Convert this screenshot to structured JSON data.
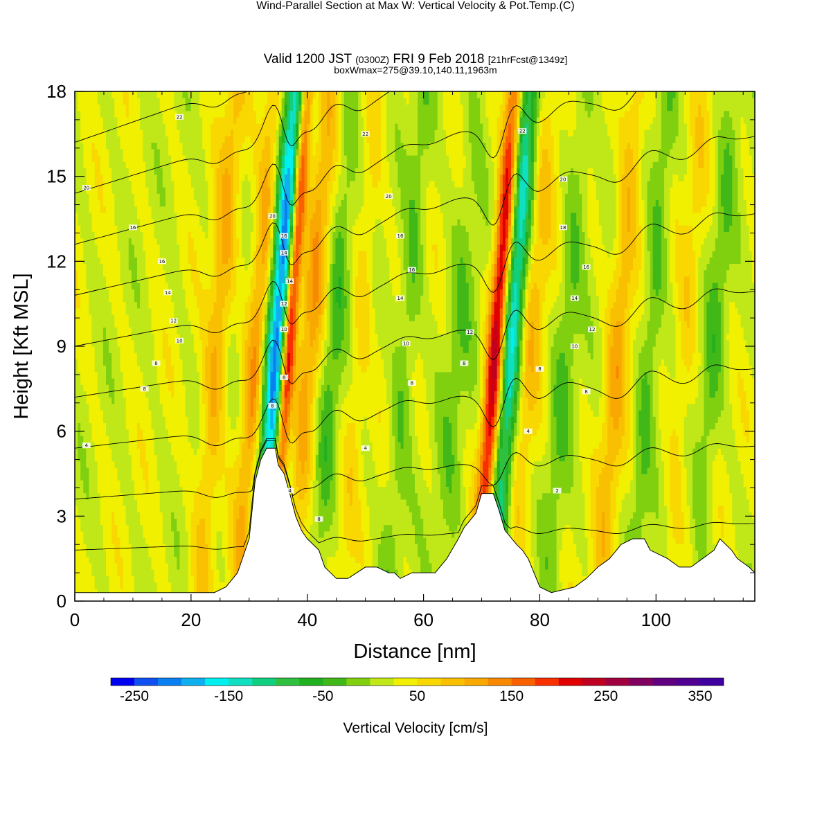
{
  "title": {
    "main": "Wind-Parallel Section at Max W: Vertical Velocity & Pot.Temp.",
    "copyright": "(C)",
    "valid_prefix": "Valid 1200 JST",
    "valid_zulu": "(0300Z)",
    "valid_date": "FRI 9 Feb 2018",
    "forecast": "[21hrFcst@1349z]",
    "box": "boxWmax=275@39.10,140.11,1963m"
  },
  "chart_data": {
    "type": "heatmap",
    "xlabel": "Distance [nm]",
    "ylabel": "Height [Kft MSL]",
    "xlim": [
      0,
      117
    ],
    "ylim": [
      0,
      18
    ],
    "xticks": [
      0,
      20,
      40,
      60,
      80,
      100
    ],
    "yticks": [
      0,
      3,
      6,
      9,
      12,
      15,
      18
    ],
    "colorbar": {
      "title": "Vertical Velocity [cm/s]",
      "min": -275,
      "max": 375,
      "step": 25,
      "tick_values": [
        -250,
        -150,
        -50,
        50,
        150,
        250,
        350
      ],
      "tick_labels": [
        "-250",
        "-150",
        "-50",
        "50",
        "150",
        "250",
        "350"
      ],
      "colors": [
        "#0000f0",
        "#1050f0",
        "#0a80f0",
        "#10b0f0",
        "#00f0f0",
        "#10e0c0",
        "#10d080",
        "#30c040",
        "#20b020",
        "#40b818",
        "#80d010",
        "#c0e818",
        "#f0f000",
        "#f8d800",
        "#f8c000",
        "#f8a800",
        "#f88800",
        "#f86000",
        "#f83000",
        "#e00000",
        "#c00020",
        "#a00040",
        "#800060",
        "#600080",
        "#500090",
        "#4000a0"
      ]
    },
    "velocity_bands": [
      {
        "x": 34.8,
        "w": 2.3,
        "v": -260
      },
      {
        "x": 36.8,
        "w": 1.2,
        "v": 260
      },
      {
        "x": 40.5,
        "w": 2.0,
        "v": 90
      },
      {
        "x": 44.5,
        "w": 1.8,
        "v": -60
      },
      {
        "x": 49.0,
        "w": 1.6,
        "v": 40
      },
      {
        "x": 57.0,
        "w": 2.0,
        "v": -50
      },
      {
        "x": 66.0,
        "w": 2.5,
        "v": -40
      },
      {
        "x": 72.5,
        "w": 1.5,
        "v": 240
      },
      {
        "x": 75.2,
        "w": 2.0,
        "v": -200
      },
      {
        "x": 78.0,
        "w": 2.5,
        "v": 70
      },
      {
        "x": 84.5,
        "w": 2.0,
        "v": -50
      },
      {
        "x": 93.5,
        "w": 2.0,
        "v": 80
      },
      {
        "x": 99.0,
        "w": 1.8,
        "v": -60
      },
      {
        "x": 105.0,
        "w": 1.8,
        "v": 40
      },
      {
        "x": 110.0,
        "w": 1.8,
        "v": -50
      },
      {
        "x": 24.5,
        "w": 2.0,
        "v": 80
      },
      {
        "x": 31.5,
        "w": 2.0,
        "v": 120
      }
    ],
    "terrain": [
      [
        0,
        0.3
      ],
      [
        10,
        0.3
      ],
      [
        24,
        0.3
      ],
      [
        26,
        0.5
      ],
      [
        28,
        1.0
      ],
      [
        30,
        2.2
      ],
      [
        31,
        4.2
      ],
      [
        32,
        5.0
      ],
      [
        33,
        5.4
      ],
      [
        34.5,
        5.4
      ],
      [
        35,
        4.8
      ],
      [
        36,
        4.5
      ],
      [
        37,
        3.8
      ],
      [
        38,
        3.0
      ],
      [
        39,
        2.5
      ],
      [
        40,
        2.2
      ],
      [
        42,
        1.8
      ],
      [
        43,
        1.2
      ],
      [
        45,
        0.8
      ],
      [
        47,
        0.8
      ],
      [
        50,
        1.2
      ],
      [
        52,
        1.2
      ],
      [
        54,
        1.0
      ],
      [
        55,
        1.0
      ],
      [
        56,
        0.8
      ],
      [
        58,
        1.0
      ],
      [
        62,
        1.0
      ],
      [
        64,
        1.5
      ],
      [
        66,
        2.2
      ],
      [
        67,
        2.6
      ],
      [
        69,
        3.1
      ],
      [
        70,
        3.8
      ],
      [
        72,
        3.8
      ],
      [
        73,
        3.2
      ],
      [
        74,
        2.5
      ],
      [
        76,
        2.0
      ],
      [
        77,
        1.8
      ],
      [
        78,
        1.5
      ],
      [
        79,
        1.0
      ],
      [
        80,
        0.5
      ],
      [
        82,
        0.3
      ],
      [
        86,
        0.5
      ],
      [
        88,
        0.8
      ],
      [
        90,
        1.2
      ],
      [
        92,
        1.5
      ],
      [
        94,
        2.0
      ],
      [
        96,
        2.2
      ],
      [
        98,
        2.2
      ],
      [
        99,
        1.8
      ],
      [
        102,
        1.5
      ],
      [
        104,
        1.2
      ],
      [
        106,
        1.2
      ],
      [
        108,
        1.5
      ],
      [
        110,
        1.8
      ],
      [
        111,
        2.2
      ],
      [
        113,
        1.8
      ],
      [
        114,
        1.5
      ],
      [
        116,
        1.2
      ],
      [
        117,
        1.0
      ]
    ],
    "theta_levels": [
      2,
      4,
      6,
      8,
      10,
      12,
      14,
      16,
      18,
      20,
      22
    ],
    "contour_labels": [
      {
        "x": 2,
        "y": 5.5,
        "text": "4"
      },
      {
        "x": 12,
        "y": 7.5,
        "text": "8"
      },
      {
        "x": 14,
        "y": 8.4,
        "text": "8"
      },
      {
        "x": 18,
        "y": 9.2,
        "text": "10"
      },
      {
        "x": 17,
        "y": 9.9,
        "text": "12"
      },
      {
        "x": 16,
        "y": 10.9,
        "text": "14"
      },
      {
        "x": 15,
        "y": 12.0,
        "text": "16"
      },
      {
        "x": 10,
        "y": 13.2,
        "text": "16"
      },
      {
        "x": 2,
        "y": 14.6,
        "text": "20"
      },
      {
        "x": 18,
        "y": 17.1,
        "text": "22"
      },
      {
        "x": 34,
        "y": 6.9,
        "text": "8"
      },
      {
        "x": 36,
        "y": 7.9,
        "text": "8"
      },
      {
        "x": 36,
        "y": 9.6,
        "text": "10"
      },
      {
        "x": 36,
        "y": 10.5,
        "text": "12"
      },
      {
        "x": 37,
        "y": 11.3,
        "text": "14"
      },
      {
        "x": 36,
        "y": 12.3,
        "text": "14"
      },
      {
        "x": 36,
        "y": 12.9,
        "text": "16"
      },
      {
        "x": 34,
        "y": 13.6,
        "text": "20"
      },
      {
        "x": 37,
        "y": 3.9,
        "text": "4"
      },
      {
        "x": 42,
        "y": 2.9,
        "text": "8"
      },
      {
        "x": 50,
        "y": 5.4,
        "text": "4"
      },
      {
        "x": 58,
        "y": 7.7,
        "text": "8"
      },
      {
        "x": 57,
        "y": 9.1,
        "text": "10"
      },
      {
        "x": 56,
        "y": 10.7,
        "text": "14"
      },
      {
        "x": 58,
        "y": 11.7,
        "text": "16"
      },
      {
        "x": 56,
        "y": 12.9,
        "text": "16"
      },
      {
        "x": 54,
        "y": 14.3,
        "text": "20"
      },
      {
        "x": 50,
        "y": 16.5,
        "text": "22"
      },
      {
        "x": 67,
        "y": 8.4,
        "text": "8"
      },
      {
        "x": 68,
        "y": 9.5,
        "text": "12"
      },
      {
        "x": 78,
        "y": 6.0,
        "text": "4"
      },
      {
        "x": 83,
        "y": 3.9,
        "text": "2"
      },
      {
        "x": 80,
        "y": 8.2,
        "text": "8"
      },
      {
        "x": 88,
        "y": 7.4,
        "text": "8"
      },
      {
        "x": 86,
        "y": 9.0,
        "text": "10"
      },
      {
        "x": 89,
        "y": 9.6,
        "text": "12"
      },
      {
        "x": 86,
        "y": 10.7,
        "text": "14"
      },
      {
        "x": 88,
        "y": 11.8,
        "text": "16"
      },
      {
        "x": 84,
        "y": 13.2,
        "text": "18"
      },
      {
        "x": 84,
        "y": 14.9,
        "text": "20"
      },
      {
        "x": 77,
        "y": 16.6,
        "text": "22"
      }
    ]
  }
}
